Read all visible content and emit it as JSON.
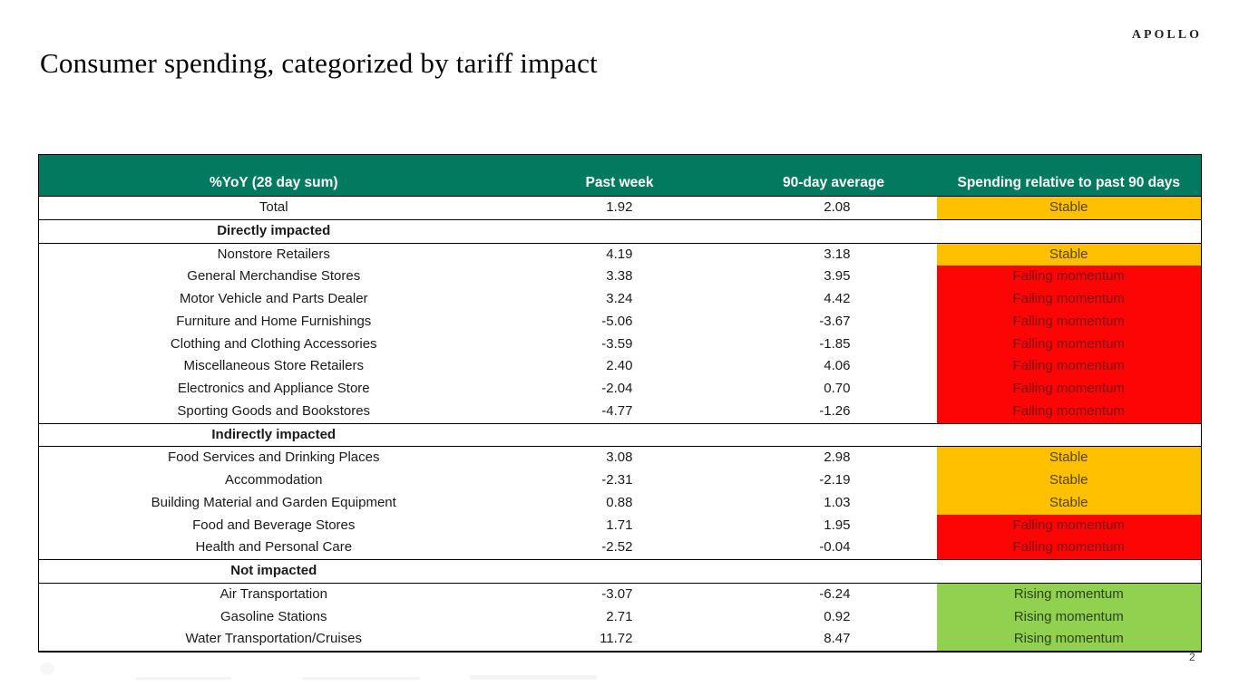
{
  "brand": {
    "logo_text": "APOLLO"
  },
  "page": {
    "title": "Consumer spending, categorized by tariff impact",
    "page_number": "2"
  },
  "colors": {
    "header_bg": "#027A60",
    "header_fg": "#FFFFFF",
    "border": "#000000"
  },
  "table": {
    "columns": [
      "%YoY (28 day sum)",
      "Past week",
      "90-day average",
      "Spending relative to past 90 days"
    ],
    "status_styles": {
      "amber": {
        "bg": "#FFC000",
        "fg": "#574200"
      },
      "red": {
        "bg": "#FE0505",
        "fg": "#7D0C0C"
      },
      "green": {
        "bg": "#92D050",
        "fg": "#2A4414"
      }
    },
    "rows": [
      {
        "type": "data",
        "category": "Total",
        "past_week": "1.92",
        "avg_90": "2.08",
        "status": "Stable",
        "status_color": "amber"
      },
      {
        "type": "section",
        "category": "Directly impacted"
      },
      {
        "type": "data",
        "category": "Nonstore Retailers",
        "past_week": "4.19",
        "avg_90": "3.18",
        "status": "Stable",
        "status_color": "amber"
      },
      {
        "type": "data",
        "category": "General Merchandise Stores",
        "past_week": "3.38",
        "avg_90": "3.95",
        "status": "Falling momentum",
        "status_color": "red"
      },
      {
        "type": "data",
        "category": "Motor Vehicle and Parts Dealer",
        "past_week": "3.24",
        "avg_90": "4.42",
        "status": "Falling momentum",
        "status_color": "red"
      },
      {
        "type": "data",
        "category": "Furniture and Home Furnishings",
        "past_week": "-5.06",
        "avg_90": "-3.67",
        "status": "Falling momentum",
        "status_color": "red"
      },
      {
        "type": "data",
        "category": "Clothing and Clothing Accessories",
        "past_week": "-3.59",
        "avg_90": "-1.85",
        "status": "Falling momentum",
        "status_color": "red"
      },
      {
        "type": "data",
        "category": "Miscellaneous Store Retailers",
        "past_week": "2.40",
        "avg_90": "4.06",
        "status": "Falling momentum",
        "status_color": "red"
      },
      {
        "type": "data",
        "category": "Electronics and Appliance Store",
        "past_week": "-2.04",
        "avg_90": "0.70",
        "status": "Falling momentum",
        "status_color": "red"
      },
      {
        "type": "data",
        "category": "Sporting Goods and Bookstores",
        "past_week": "-4.77",
        "avg_90": "-1.26",
        "status": "Falling momentum",
        "status_color": "red"
      },
      {
        "type": "section",
        "category": "Indirectly impacted"
      },
      {
        "type": "data",
        "category": "Food Services and Drinking Places",
        "past_week": "3.08",
        "avg_90": "2.98",
        "status": "Stable",
        "status_color": "amber"
      },
      {
        "type": "data",
        "category": "Accommodation",
        "past_week": "-2.31",
        "avg_90": "-2.19",
        "status": "Stable",
        "status_color": "amber"
      },
      {
        "type": "data",
        "category": "Building Material and Garden Equipment",
        "past_week": "0.88",
        "avg_90": "1.03",
        "status": "Stable",
        "status_color": "amber"
      },
      {
        "type": "data",
        "category": "Food and Beverage Stores",
        "past_week": "1.71",
        "avg_90": "1.95",
        "status": "Falling momentum",
        "status_color": "red"
      },
      {
        "type": "data",
        "category": "Health and Personal Care",
        "past_week": "-2.52",
        "avg_90": "-0.04",
        "status": "Falling momentum",
        "status_color": "red"
      },
      {
        "type": "section",
        "category": "Not impacted"
      },
      {
        "type": "data",
        "category": "Air Transportation",
        "past_week": "-3.07",
        "avg_90": "-6.24",
        "status": "Rising momentum",
        "status_color": "green"
      },
      {
        "type": "data",
        "category": "Gasoline Stations",
        "past_week": "2.71",
        "avg_90": "0.92",
        "status": "Rising momentum",
        "status_color": "green"
      },
      {
        "type": "data",
        "category": "Water Transportation/Cruises",
        "past_week": "11.72",
        "avg_90": "8.47",
        "status": "Rising momentum",
        "status_color": "green"
      }
    ]
  }
}
